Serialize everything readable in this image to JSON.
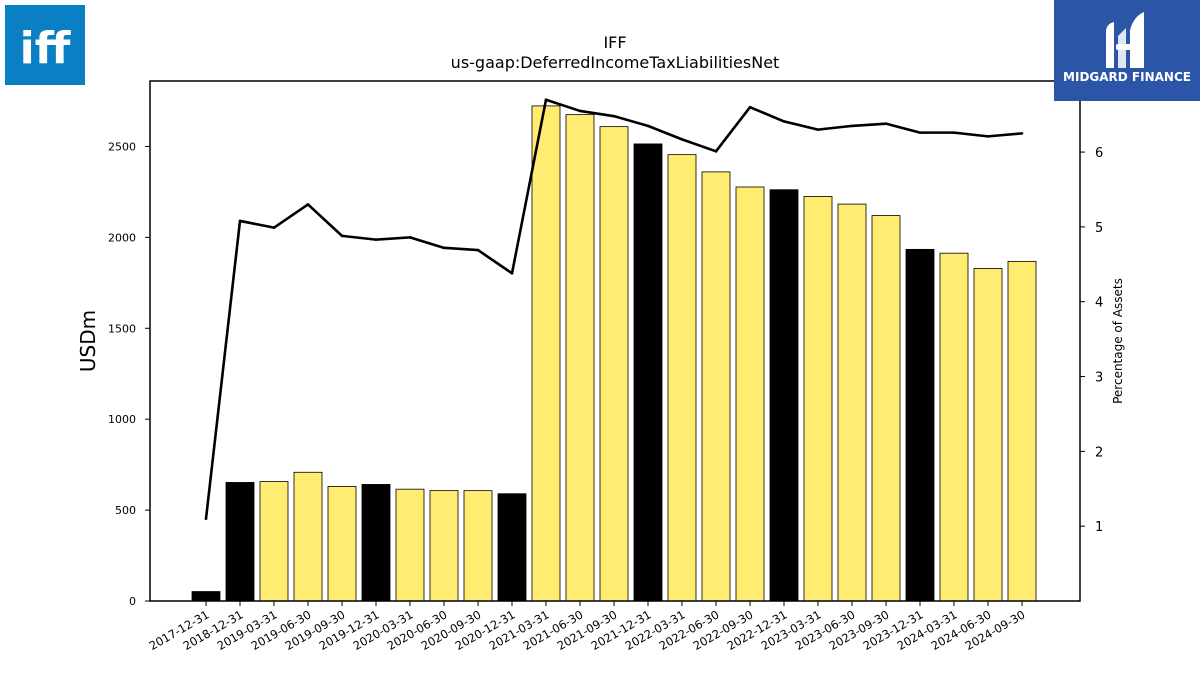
{
  "company_logo": {
    "text": "iff",
    "color": "#0a7fc4"
  },
  "brand_logo": {
    "text": "MIDGARD FINANCE",
    "color": "#2b56a8"
  },
  "chart_data": {
    "type": "bar",
    "title": "IFF",
    "subtitle": "us-gaap:DeferredIncomeTaxLiabilitiesNet",
    "ylabel": "USDm",
    "y2label": "Percentage of Assets",
    "ylim": [
      0,
      2860
    ],
    "y2lim": [
      0,
      6.95
    ],
    "yticks": [
      0,
      500,
      1000,
      1500,
      2000,
      2500
    ],
    "y2ticks": [
      1,
      2,
      3,
      4,
      5,
      6
    ],
    "grid": false,
    "categories": [
      "2017-12-31",
      "2018-12-31",
      "2019-03-31",
      "2019-06-30",
      "2019-09-30",
      "2019-12-31",
      "2020-03-31",
      "2020-06-30",
      "2020-09-30",
      "2020-12-31",
      "2021-03-31",
      "2021-06-30",
      "2021-09-30",
      "2021-12-31",
      "2022-03-31",
      "2022-06-30",
      "2022-09-30",
      "2022-12-31",
      "2023-03-31",
      "2023-06-30",
      "2023-09-30",
      "2023-12-31",
      "2024-03-31",
      "2024-06-30",
      "2024-09-30"
    ],
    "series": [
      {
        "type": "bar",
        "values": [
          52,
          652,
          657,
          708,
          630,
          641,
          615,
          607,
          607,
          590,
          2723,
          2675,
          2609,
          2514,
          2455,
          2360,
          2277,
          2262,
          2225,
          2183,
          2120,
          1934,
          1913,
          1829,
          1868
        ]
      },
      {
        "type": "line",
        "axis": "right",
        "values": [
          1.1,
          5.08,
          4.99,
          5.3,
          4.88,
          4.83,
          4.86,
          4.72,
          4.69,
          4.38,
          6.7,
          6.55,
          6.48,
          6.35,
          6.17,
          6.01,
          6.6,
          6.41,
          6.3,
          6.35,
          6.38,
          6.26,
          6.26,
          6.21,
          6.25
        ]
      }
    ],
    "bar_colors": {
      "annual": "#000000",
      "quarterly": "#ffec70"
    },
    "bar_edge_color": "#000000",
    "line_color": "#000000"
  }
}
